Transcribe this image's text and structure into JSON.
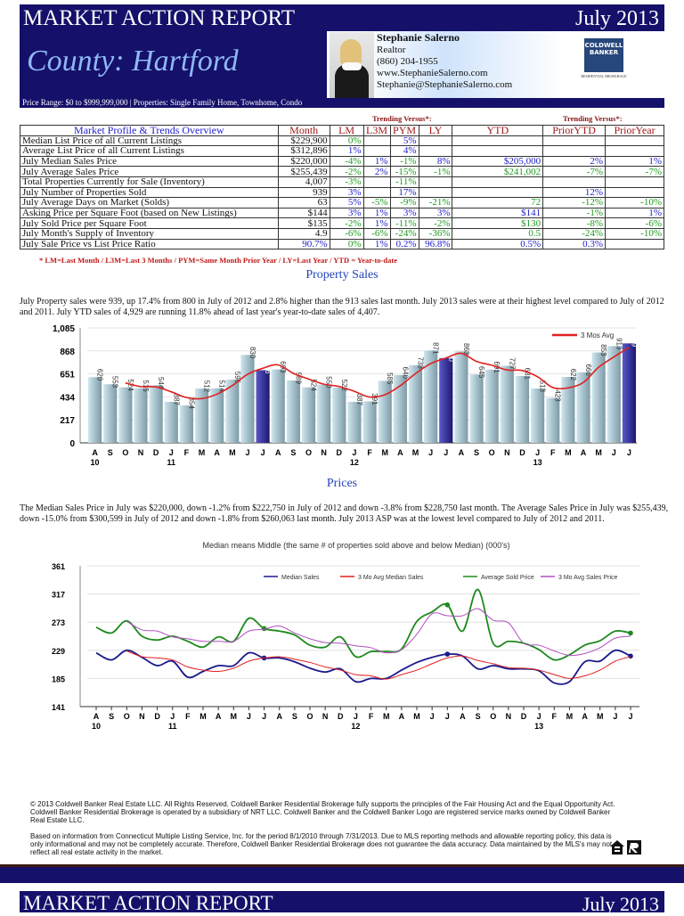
{
  "header": {
    "title": "MARKET ACTION REPORT",
    "date": "July 2013",
    "county": "County: Hartford",
    "price_range": "Price Range: $0 to $999,999,000 | Properties: Single Family Home, Townhome, Condo"
  },
  "agent": {
    "name": "Stephanie Salerno",
    "title": "Realtor",
    "phone": "(860) 204-1955",
    "website": "www.StephanieSalerno.com",
    "email": "Stephanie@StephanieSalerno.com"
  },
  "logo": {
    "line1": "COLDWELL",
    "line2": "BANKER",
    "sub": "RESIDENTIAL BROKERAGE"
  },
  "table": {
    "trending_label": "Trending Versus*:",
    "headers": [
      "Market Profile & Trends Overview",
      "Month",
      "LM",
      "L3M",
      "PYM",
      "LY",
      "YTD",
      "PriorYTD",
      "PriorYear"
    ],
    "rows": [
      {
        "label": "Median List Price of all Current Listings",
        "month": "$229,900",
        "cells": [
          [
            "0%",
            "g"
          ],
          [
            "",
            ""
          ],
          [
            "5%",
            "b"
          ],
          [
            "",
            ""
          ],
          [
            "",
            ""
          ],
          [
            "",
            ""
          ],
          [
            "",
            ""
          ]
        ]
      },
      {
        "label": "Average List Price of all Current Listings",
        "month": "$312,896",
        "cells": [
          [
            "1%",
            "b"
          ],
          [
            "",
            ""
          ],
          [
            "4%",
            "b"
          ],
          [
            "",
            ""
          ],
          [
            "",
            ""
          ],
          [
            "",
            ""
          ],
          [
            "",
            ""
          ]
        ]
      },
      {
        "label": "July Median Sales Price",
        "month": "$220,000",
        "cells": [
          [
            "-4%",
            "g"
          ],
          [
            "1%",
            "b"
          ],
          [
            "-1%",
            "g"
          ],
          [
            "8%",
            "b"
          ],
          [
            "$205,000",
            "b"
          ],
          [
            "2%",
            "b"
          ],
          [
            "1%",
            "b"
          ]
        ]
      },
      {
        "label": "July Average Sales Price",
        "month": "$255,439",
        "cells": [
          [
            "-2%",
            "g"
          ],
          [
            "2%",
            "b"
          ],
          [
            "-15%",
            "g"
          ],
          [
            "-1%",
            "g"
          ],
          [
            "$241,002",
            "g"
          ],
          [
            "-7%",
            "g"
          ],
          [
            "-7%",
            "g"
          ]
        ]
      },
      {
        "label": "Total Properties Currently for Sale (Inventory)",
        "month": "4,007",
        "cells": [
          [
            "-3%",
            "g"
          ],
          [
            "",
            ""
          ],
          [
            "-11%",
            "g"
          ],
          [
            "",
            ""
          ],
          [
            "",
            ""
          ],
          [
            "",
            ""
          ],
          [
            "",
            ""
          ]
        ]
      },
      {
        "label": "July Number of Properties Sold",
        "month": "939",
        "cells": [
          [
            "3%",
            "b"
          ],
          [
            "",
            ""
          ],
          [
            "17%",
            "b"
          ],
          [
            "",
            ""
          ],
          [
            "",
            ""
          ],
          [
            "12%",
            "b"
          ],
          [
            "",
            ""
          ]
        ]
      },
      {
        "label": "July Average Days on Market (Solds)",
        "month": "63",
        "cells": [
          [
            "5%",
            "b"
          ],
          [
            "-5%",
            "g"
          ],
          [
            "-9%",
            "g"
          ],
          [
            "-21%",
            "g"
          ],
          [
            "72",
            "g"
          ],
          [
            "-12%",
            "g"
          ],
          [
            "-10%",
            "g"
          ]
        ]
      },
      {
        "label": "Asking Price per Square Foot (based on New Listings)",
        "month": "$144",
        "cells": [
          [
            "3%",
            "b"
          ],
          [
            "1%",
            "b"
          ],
          [
            "3%",
            "b"
          ],
          [
            "3%",
            "b"
          ],
          [
            "$141",
            "b"
          ],
          [
            "-1%",
            "g"
          ],
          [
            "1%",
            "b"
          ]
        ]
      },
      {
        "label": "July Sold Price per Square Foot",
        "month": "$135",
        "cells": [
          [
            "-2%",
            "g"
          ],
          [
            "1%",
            "b"
          ],
          [
            "-11%",
            "g"
          ],
          [
            "-2%",
            "g"
          ],
          [
            "$130",
            "g"
          ],
          [
            "-8%",
            "g"
          ],
          [
            "-6%",
            "g"
          ]
        ]
      },
      {
        "label": "July Month's Supply of Inventory",
        "month": "4.9",
        "cells": [
          [
            "-6%",
            "g"
          ],
          [
            "-6%",
            "g"
          ],
          [
            "-24%",
            "g"
          ],
          [
            "-36%",
            "g"
          ],
          [
            "0.5",
            "g"
          ],
          [
            "-24%",
            "g"
          ],
          [
            "-10%",
            "g"
          ]
        ]
      },
      {
        "label": "July Sale Price vs List Price Ratio",
        "month": "90.7%",
        "month_color": "b",
        "cells": [
          [
            "0%",
            "g"
          ],
          [
            "1%",
            "b"
          ],
          [
            "0.2%",
            "b"
          ],
          [
            "96.8%",
            "b"
          ],
          [
            "0.5%",
            "b"
          ],
          [
            "0.3%",
            "b"
          ],
          [
            "",
            ""
          ]
        ]
      }
    ],
    "footnote": "* LM=Last Month / L3M=Last 3 Months / PYM=Same Month Prior Year / LY=Last Year / YTD = Year-to-date"
  },
  "sales": {
    "heading": "Property Sales",
    "text": "July Property sales were 939, up 17.4% from 800 in July of 2012 and 2.8% higher than the  913 sales last month.  July 2013 sales were at their highest level compared to July of 2012 and 2011.  July YTD sales of 4,929 are running 11.8% ahead of  last year's year-to-date sales of 4,407."
  },
  "prices": {
    "heading": "Prices",
    "text": "The Median Sales Price in July was $220,000, down -1.2% from $222,750 in July of 2012 and down -3.8% from $228,750 last month.  The Average Sales Price in July was $255,439, down -15.0% from $300,599 in July of 2012 and down -1.8% from $260,063 last month.  July 2013 ASP was at the lowest level compared to July of 2012 and 2011."
  },
  "chart_data": [
    {
      "type": "bar",
      "title": "",
      "ylim": [
        0,
        1085
      ],
      "yticks": [
        "0",
        "217",
        "434",
        "651",
        "868",
        "1,085"
      ],
      "months": [
        "A",
        "S",
        "O",
        "N",
        "D",
        "J",
        "F",
        "M",
        "A",
        "M",
        "J",
        "J",
        "A",
        "S",
        "O",
        "N",
        "D",
        "J",
        "F",
        "M",
        "A",
        "M",
        "J",
        "J",
        "A",
        "S",
        "O",
        "N",
        "D",
        "J",
        "F",
        "M",
        "A",
        "M",
        "J",
        "J"
      ],
      "years": {
        "0": "10",
        "5": "11",
        "17": "12",
        "29": "13"
      },
      "highlight": [
        11,
        23,
        35
      ],
      "colors": {
        "bar": "#a9cbd8",
        "highlight": "#2b2690",
        "line": "#e02020"
      },
      "values": [
        620,
        553,
        524,
        515,
        544,
        387,
        354,
        512,
        514,
        596,
        830,
        686,
        693,
        589,
        524,
        550,
        522,
        387,
        391,
        585,
        640,
        733,
        871,
        800,
        863,
        645,
        691,
        727,
        631,
        513,
        423,
        622,
        666,
        853,
        913,
        939
      ],
      "series": [
        {
          "name": "3 Mos Avg",
          "start": 2,
          "values": [
            566,
            531,
            528,
            482,
            428,
            418,
            460,
            541,
            647,
            704,
            736,
            656,
            602,
            554,
            532,
            486,
            433,
            454,
            539,
            653,
            748,
            801,
            845,
            769,
            733,
            688,
            683,
            624,
            522,
            519,
            570,
            714,
            811,
            902
          ]
        }
      ]
    },
    {
      "type": "line",
      "title": "Median means Middle (the same # of properties sold above and below Median) (000's)",
      "ylim": [
        141,
        361
      ],
      "yticks": [
        "141",
        "185",
        "229",
        "273",
        "317",
        "361"
      ],
      "legend": "top-right",
      "series": [
        {
          "name": "Median Sales",
          "color": "#1a1a8c",
          "start": 0,
          "markers": [
            11,
            23,
            35
          ],
          "values": [
            225,
            214,
            229,
            218,
            205,
            212,
            187,
            196,
            205,
            205,
            225,
            217,
            217,
            211,
            201,
            195,
            200,
            180,
            185,
            185,
            198,
            210,
            218,
            223,
            220,
            200,
            205,
            200,
            200,
            197,
            178,
            180,
            211,
            212,
            229,
            220
          ]
        },
        {
          "name": "3 Mo Avg Median Sales",
          "color": "#e02020",
          "start": 2,
          "values": [
            228,
            219,
            217,
            214,
            203,
            198,
            196,
            201,
            212,
            217,
            219,
            215,
            210,
            203,
            198,
            191,
            189,
            184,
            191,
            198,
            208,
            217,
            220,
            213,
            208,
            202,
            201,
            198,
            191,
            185,
            189,
            198,
            212,
            219
          ]
        },
        {
          "name": "Average Sold Price",
          "color": "#1e8a1e",
          "start": 0,
          "markers": [
            11,
            23,
            35
          ],
          "values": [
            265,
            256,
            275,
            251,
            245,
            251,
            243,
            234,
            250,
            243,
            279,
            263,
            259,
            253,
            237,
            234,
            250,
            219,
            227,
            227,
            231,
            274,
            289,
            300,
            259,
            324,
            240,
            243,
            240,
            230,
            214,
            222,
            237,
            244,
            259,
            256
          ]
        },
        {
          "name": "3 Mo Avg Sales Price",
          "color": "#b050c0",
          "start": 2,
          "values": [
            274,
            261,
            259,
            250,
            247,
            243,
            243,
            243,
            259,
            262,
            267,
            256,
            247,
            241,
            240,
            236,
            233,
            225,
            230,
            254,
            286,
            283,
            283,
            294,
            276,
            272,
            240,
            237,
            228,
            221,
            224,
            233,
            248,
            251
          ]
        }
      ]
    }
  ],
  "legal": {
    "p1": "© 2013 Coldwell Banker Real Estate LLC.   All Rights Reserved. Coldwell Banker Residential Brokerage fully supports the principles of the Fair Housing Act and the Equal Opportunity Act.  Coldwell Banker Residential Brokerage is operated by a subsidiary of NRT LLC.  Coldwell Banker and the Coldwell Banker Logo are registered service marks owned by Coldwell Banker Real Estate LLC.",
    "p2": "Based on information from Connecticut Multiple Listing Service, Inc. for the period 8/1/2010 through 7/31/2013.  Due to MLS reporting methods and allowable reporting policy, this data is only informational and may not be completely accurate.  Therefore, Coldwell Banker Residential Brokerage does not guarantee the data accuracy.  Data maintained by the MLS's may not reflect all real estate activity in the market."
  },
  "footer": {
    "title": "MARKET ACTION REPORT",
    "date": "July 2013"
  }
}
